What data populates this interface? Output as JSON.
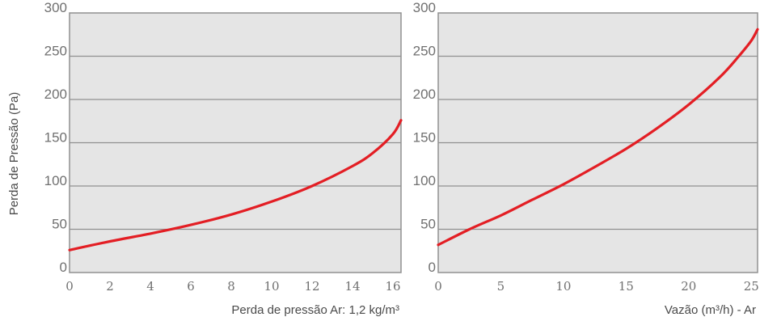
{
  "ylabel": "Perda de Pressão (Pa)",
  "colors": {
    "plot_bg": "#e5e5e5",
    "grid": "#909090",
    "frame": "#909090",
    "curve": "#e31e24",
    "tick_text": "#707070"
  },
  "chart_data": [
    {
      "type": "line",
      "xlabel": "Perda de pressão Ar: 1,2 kg/m³",
      "ylabel": "Perda de Pressão (Pa)",
      "xlim": [
        0,
        16.4
      ],
      "ylim": [
        0,
        300
      ],
      "xticks": [
        "0",
        "2",
        "4",
        "6",
        "8",
        "10",
        "12",
        "14",
        "16"
      ],
      "yticks": [
        "0",
        "50",
        "100",
        "150",
        "200",
        "250",
        "300"
      ],
      "grid": true,
      "series": [
        {
          "x": [
            0,
            2,
            4,
            6,
            8,
            10,
            12,
            14,
            15,
            16,
            16.4
          ],
          "y": [
            26,
            36,
            45,
            55,
            67,
            82,
            100,
            123,
            138,
            160,
            176
          ],
          "color": "#e31e24"
        }
      ]
    },
    {
      "type": "line",
      "xlabel": "Vazão (m³/h) - Ar",
      "ylabel": "",
      "xlim": [
        0,
        25.5
      ],
      "ylim": [
        0,
        300
      ],
      "xticks": [
        "0",
        "5",
        "10",
        "15",
        "20",
        "25"
      ],
      "yticks": [
        "0",
        "50",
        "100",
        "150",
        "200",
        "250",
        "300"
      ],
      "grid": true,
      "series": [
        {
          "x": [
            0,
            2.5,
            5,
            7.5,
            10,
            12.5,
            15,
            17.5,
            20,
            22.5,
            24,
            25,
            25.5
          ],
          "y": [
            32,
            50,
            66,
            84,
            102,
            122,
            143,
            167,
            194,
            226,
            250,
            268,
            281
          ],
          "color": "#e31e24"
        }
      ]
    }
  ]
}
